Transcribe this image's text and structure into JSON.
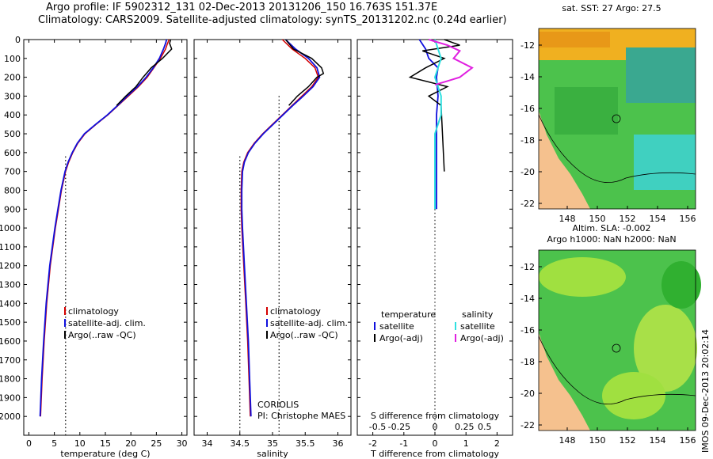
{
  "header": {
    "line1": "Argo profile: IF 5902312_131 02-Dec-2013 20131206_150 16.763S 151.37E",
    "line2": "Climatology: CARS2009. Satellite-adjusted climatology: synTS_20131202.nc (0.24d earlier)"
  },
  "maps": {
    "sst_title": "sat. SST: 27 Argo: 27.5",
    "sla_title": "Altim. SLA: -0.002",
    "sla_subtitle": "Argo h1000: NaN h2000: NaN",
    "lat_ticks": [
      "-12",
      "-14",
      "-16",
      "-18",
      "-20",
      "-22"
    ],
    "lon_ticks": [
      "148",
      "150",
      "152",
      "154",
      "156"
    ]
  },
  "stamp": "IMOS 09-Dec-2013 20:02:14",
  "colors": {
    "climatology": "#d40000",
    "satellite": "#1010dd",
    "argo": "#000000",
    "sal_satellite": "#30e0e0",
    "sal_argo": "#e020e0",
    "land": "#f5c18e"
  },
  "chart_data": [
    {
      "type": "line",
      "id": "temperature",
      "xlabel": "temperature (deg C)",
      "ylabel": "",
      "xlim": [
        -1,
        31
      ],
      "ylim": [
        2100,
        0
      ],
      "xticks": [
        "0",
        "5",
        "10",
        "15",
        "20",
        "25",
        "30"
      ],
      "yticks": [
        "0",
        "100",
        "200",
        "300",
        "400",
        "500",
        "600",
        "700",
        "800",
        "900",
        "1000",
        "1100",
        "1200",
        "1300",
        "1400",
        "1500",
        "1600",
        "1700",
        "1800",
        "1900",
        "2000"
      ],
      "legend": [
        "climatology",
        "satellite-adj. clim.",
        "Argo(..raw -QC)"
      ],
      "reference_x": 7.2,
      "series": [
        {
          "name": "climatology",
          "depth": [
            0,
            20,
            50,
            100,
            150,
            200,
            250,
            300,
            350,
            400,
            450,
            500,
            550,
            600,
            650,
            700,
            800,
            900,
            1000,
            1200,
            1400,
            1600,
            1800,
            2000
          ],
          "values": [
            27.5,
            27.2,
            26.8,
            25.8,
            24.5,
            23.2,
            21.5,
            19.5,
            17.5,
            15.5,
            13.2,
            11.0,
            9.6,
            8.6,
            7.8,
            7.2,
            6.4,
            5.8,
            5.2,
            4.2,
            3.5,
            3.0,
            2.6,
            2.3
          ]
        },
        {
          "name": "satellite",
          "depth": [
            0,
            20,
            50,
            100,
            150,
            200,
            250,
            300,
            350,
            400,
            450,
            500,
            550,
            600,
            650,
            700,
            800,
            900,
            1000,
            1200,
            1400,
            1600,
            1800,
            2000
          ],
          "values": [
            27.0,
            26.8,
            26.4,
            25.6,
            24.4,
            23.0,
            21.3,
            19.3,
            17.4,
            15.4,
            13.1,
            10.9,
            9.5,
            8.5,
            7.7,
            7.1,
            6.3,
            5.7,
            5.1,
            4.1,
            3.4,
            2.9,
            2.5,
            2.2
          ]
        },
        {
          "name": "argo",
          "depth": [
            0,
            20,
            50,
            100,
            150,
            200,
            250,
            300,
            350
          ],
          "values": [
            27.8,
            27.6,
            28.0,
            26.2,
            24.0,
            22.4,
            21.0,
            19.0,
            17.2
          ]
        }
      ]
    },
    {
      "type": "line",
      "id": "salinity",
      "xlabel": "salinity",
      "ylabel": "",
      "xlim": [
        33.8,
        36.2
      ],
      "ylim": [
        2100,
        0
      ],
      "xticks": [
        "34",
        "34.5",
        "35",
        "35.5",
        "36"
      ],
      "legend": [
        "climatology",
        "satellite-adj. clim.",
        "Argo(..raw -QC)"
      ],
      "annotation": [
        "CORIOLIS",
        "PI: Christophe MAES"
      ],
      "reference_x": [
        34.5,
        35.1
      ],
      "series": [
        {
          "name": "climatology",
          "depth": [
            0,
            50,
            100,
            150,
            200,
            250,
            300,
            350,
            400,
            450,
            500,
            550,
            600,
            650,
            700,
            800,
            900,
            1000,
            1200,
            1400,
            1600,
            1800,
            2000
          ],
          "values": [
            35.15,
            35.3,
            35.5,
            35.65,
            35.7,
            35.6,
            35.45,
            35.3,
            35.15,
            35.0,
            34.85,
            34.72,
            34.62,
            34.56,
            34.53,
            34.52,
            34.52,
            34.53,
            34.56,
            34.59,
            34.62,
            34.64,
            34.66
          ]
        },
        {
          "name": "satellite",
          "depth": [
            0,
            50,
            100,
            150,
            200,
            250,
            300,
            350,
            400,
            450,
            500,
            550,
            600,
            650,
            700,
            800,
            900,
            1000,
            1200,
            1400,
            1600,
            1800,
            2000
          ],
          "values": [
            35.2,
            35.35,
            35.55,
            35.68,
            35.72,
            35.62,
            35.47,
            35.31,
            35.16,
            35.01,
            34.86,
            34.73,
            34.63,
            34.57,
            34.54,
            34.53,
            34.53,
            34.54,
            34.57,
            34.6,
            34.63,
            34.65,
            34.67
          ]
        },
        {
          "name": "argo",
          "depth": [
            0,
            50,
            100,
            150,
            180,
            200,
            250,
            300,
            350
          ],
          "values": [
            35.2,
            35.32,
            35.6,
            35.75,
            35.78,
            35.68,
            35.55,
            35.38,
            35.25
          ]
        }
      ]
    },
    {
      "type": "line",
      "id": "difference",
      "xlabel": "T difference from climatology",
      "xlabel_top": "S difference from climatology",
      "xlim": [
        -2.5,
        2.5
      ],
      "ylim": [
        2100,
        0
      ],
      "xticks": [
        "-2",
        "-1",
        "0",
        "1",
        "2"
      ],
      "xticks_top": [
        "-0.5",
        "-0.25",
        "0",
        "0.25",
        "0.5"
      ],
      "legend_left_title": "temperature",
      "legend_right_title": "salinity",
      "legend_left": [
        "satellite",
        "Argo(-adj)"
      ],
      "legend_right": [
        "satellite",
        "Argo(-adj)"
      ],
      "series": [
        {
          "name": "T satellite",
          "depth": [
            0,
            50,
            100,
            150,
            200,
            300,
            400,
            500,
            600,
            700,
            800,
            900
          ],
          "values": [
            -0.5,
            -0.3,
            -0.2,
            0.1,
            0.05,
            0.1,
            0.05,
            0.05,
            0.05,
            0.05,
            0.05,
            0.05
          ]
        },
        {
          "name": "T argo",
          "depth": [
            0,
            30,
            60,
            100,
            150,
            200,
            250,
            300,
            350,
            700
          ],
          "values": [
            0.3,
            0.8,
            -0.4,
            0.3,
            -0.3,
            -0.8,
            0.4,
            -0.2,
            0.2,
            0.3
          ]
        },
        {
          "name": "S satellite",
          "depth": [
            0,
            100,
            200,
            300,
            400,
            500,
            600,
            700,
            800,
            900
          ],
          "values": [
            0.0,
            0.05,
            0.0,
            0.05,
            0.05,
            0.0,
            0.0,
            0.0,
            0.0,
            0.0
          ]
        },
        {
          "name": "S argo",
          "depth": [
            0,
            30,
            60,
            100,
            150,
            200,
            220,
            240
          ],
          "values": [
            -0.05,
            0.1,
            0.2,
            0.15,
            0.3,
            0.2,
            0.1,
            0.0
          ]
        }
      ]
    }
  ]
}
